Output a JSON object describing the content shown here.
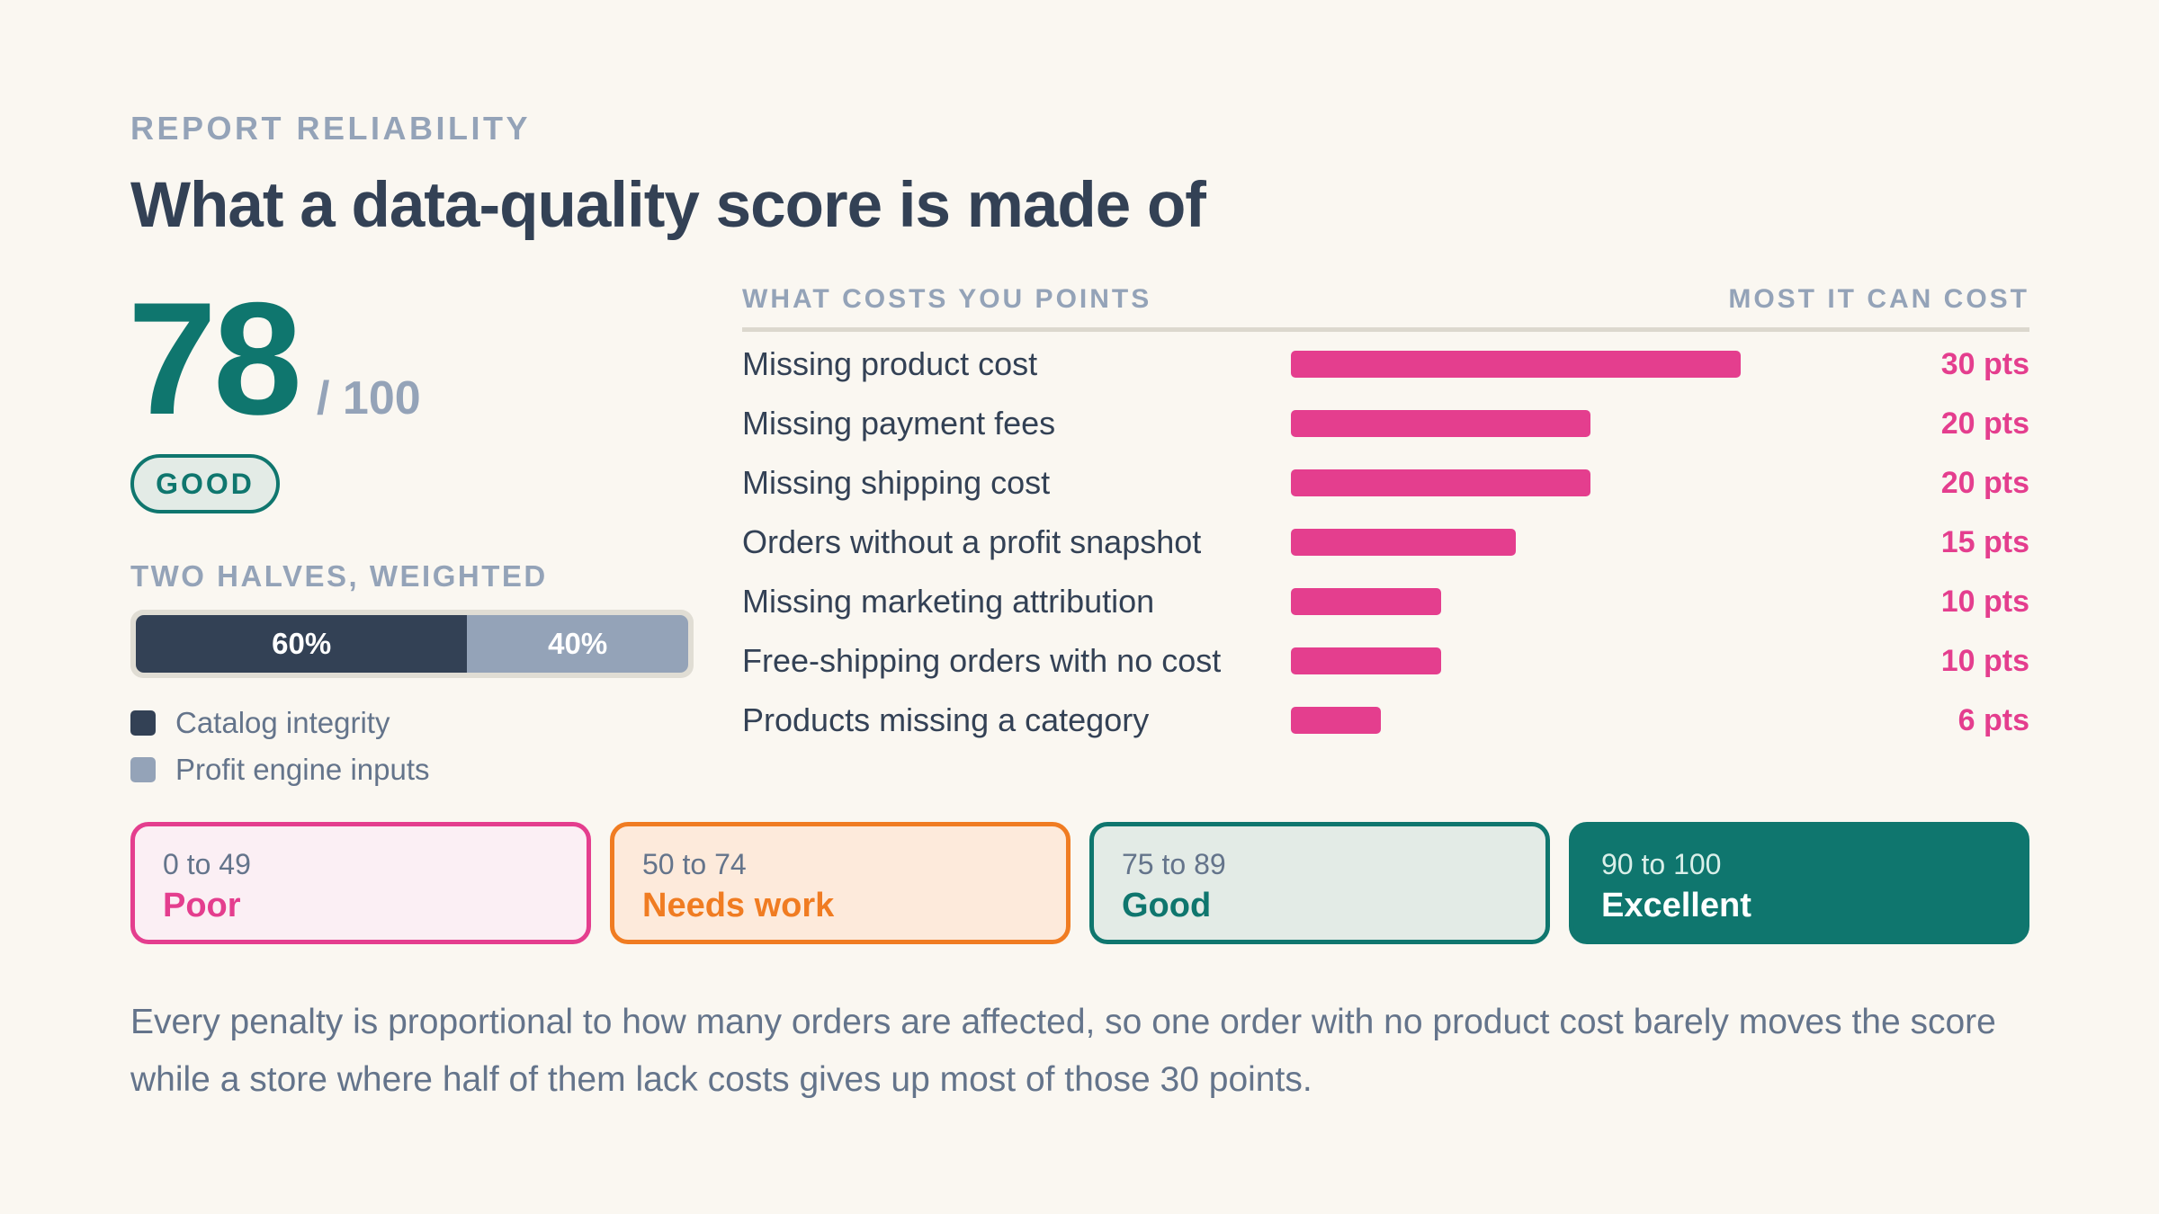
{
  "header": {
    "eyebrow": "REPORT RELIABILITY",
    "title": "What a data-quality score is made of"
  },
  "score": {
    "value": "78",
    "max_label": "/ 100",
    "rating": "GOOD"
  },
  "split": {
    "label": "TWO HALVES, WEIGHTED",
    "segments": [
      {
        "name": "Catalog integrity",
        "percent": 60,
        "label": "60%",
        "color": "#334155"
      },
      {
        "name": "Profit engine inputs",
        "percent": 40,
        "label": "40%",
        "color": "#94a3b8"
      }
    ]
  },
  "chart_data": {
    "type": "bar",
    "orientation": "horizontal",
    "column_headers": [
      "WHAT COSTS YOU POINTS",
      "MOST IT CAN COST"
    ],
    "categories": [
      "Missing product cost",
      "Missing payment fees",
      "Missing shipping cost",
      "Orders without a profit snapshot",
      "Missing marketing attribution",
      "Free-shipping orders with no cost",
      "Products missing a category"
    ],
    "values": [
      30,
      20,
      20,
      15,
      10,
      10,
      6
    ],
    "value_labels": [
      "30 pts",
      "20 pts",
      "20 pts",
      "15 pts",
      "10 pts",
      "10 pts",
      "6 pts"
    ],
    "xlim": [
      0,
      30
    ],
    "bar_color": "#e43e8e",
    "grid": false
  },
  "bands": [
    {
      "range": "0 to 49",
      "name": "Poor",
      "color": "#e43e8e"
    },
    {
      "range": "50 to 74",
      "name": "Needs work",
      "color": "#f07c22"
    },
    {
      "range": "75 to 89",
      "name": "Good",
      "color": "#0f766e"
    },
    {
      "range": "90 to 100",
      "name": "Excellent",
      "color": "#0f766e"
    }
  ],
  "footnote": "Every penalty is proportional to how many orders are affected, so one order with no product cost barely moves the score while a store where half of them lack costs gives up most of those 30 points."
}
